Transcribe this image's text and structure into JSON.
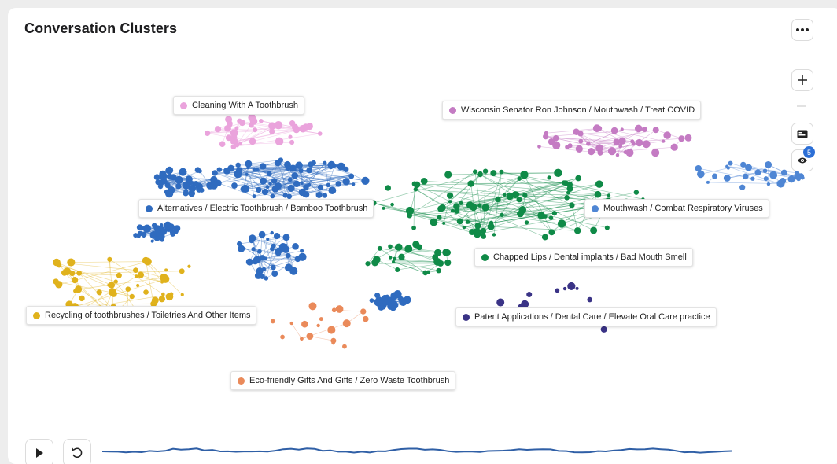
{
  "header": {
    "title": "Conversation Clusters"
  },
  "toolbar": {
    "more_icon": "more-horizontal-icon",
    "zoom_in_icon": "plus-icon",
    "zoom_out_icon": "minus-icon",
    "card_icon": "id-card-icon",
    "visibility_icon": "eye-icon",
    "visibility_count": "5"
  },
  "clusters": [
    {
      "key": "pink",
      "label": "Cleaning With A Toothbrush",
      "color": "#eaa3dc"
    },
    {
      "key": "purple",
      "label": "Wisconsin Senator Ron Johnson / Mouthwash / Treat COVID",
      "color": "#c47bc3"
    },
    {
      "key": "blue",
      "label": "Alternatives / Electric Toothbrush / Bamboo Toothbrush",
      "color": "#2f6bbf"
    },
    {
      "key": "lblue",
      "label": "Mouthwash / Combat Respiratory Viruses",
      "color": "#4f86d4"
    },
    {
      "key": "green",
      "label": "Chapped Lips / Dental implants / Bad Mouth Smell",
      "color": "#0f8a47"
    },
    {
      "key": "yellow",
      "label": "Recycling of toothbrushes / Toiletries And Other Items",
      "color": "#e0b21c"
    },
    {
      "key": "navy",
      "label": "Patent Applications / Dental Care / Elevate Oral Care practice",
      "color": "#3a3386"
    },
    {
      "key": "orange",
      "label": "Eco-friendly Gifts And Gifts / Zero Waste Toothbrush",
      "color": "#ea8a5a"
    }
  ],
  "controls": {
    "play_icon": "play-icon",
    "reset_icon": "reset-icon",
    "timeline_color": "#2f5fa6"
  }
}
